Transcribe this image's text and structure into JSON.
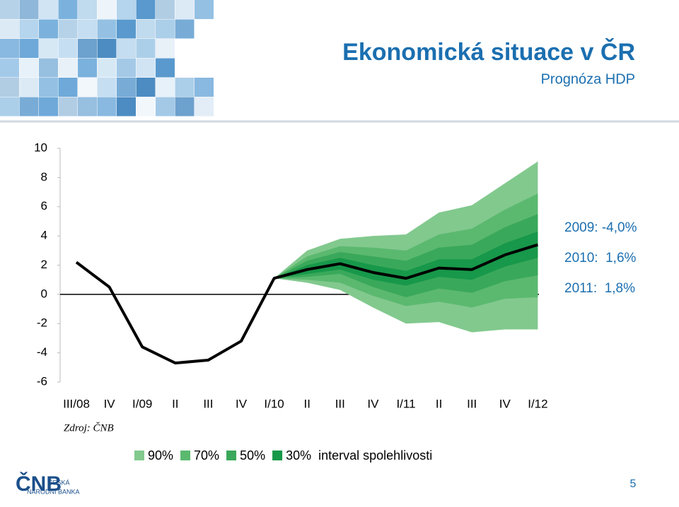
{
  "header": {
    "title": "Ekonomická situace v ČR",
    "subtitle": "Prognóza HDP"
  },
  "chart_data": {
    "type": "fan",
    "categories": [
      "III/08",
      "IV",
      "I/09",
      "II",
      "III",
      "IV",
      "I/10",
      "II",
      "III",
      "IV",
      "I/11",
      "II",
      "III",
      "IV",
      "I/12"
    ],
    "line": {
      "color": "#000000",
      "values": [
        2.2,
        0.5,
        -3.6,
        -4.7,
        -4.5,
        -3.2,
        1.1,
        1.7,
        2.1,
        1.5,
        1.1,
        1.8,
        1.7,
        2.7,
        3.4
      ]
    },
    "bands": [
      {
        "name": "90%",
        "color": "#82c98e",
        "upper": [
          null,
          null,
          null,
          null,
          null,
          null,
          1.1,
          3.0,
          3.8,
          4.0,
          4.1,
          5.6,
          6.1,
          7.6,
          9.1
        ],
        "lower": [
          null,
          null,
          null,
          null,
          null,
          null,
          1.1,
          0.8,
          0.3,
          -0.9,
          -2.0,
          -1.9,
          -2.6,
          -2.4,
          -2.4
        ]
      },
      {
        "name": "70%",
        "color": "#5bb96f",
        "upper": [
          null,
          null,
          null,
          null,
          null,
          null,
          1.1,
          2.6,
          3.3,
          3.2,
          3.0,
          4.1,
          4.5,
          5.8,
          6.9
        ],
        "lower": [
          null,
          null,
          null,
          null,
          null,
          null,
          1.1,
          1.0,
          0.8,
          -0.1,
          -0.8,
          -0.5,
          -0.9,
          -0.3,
          -0.2
        ]
      },
      {
        "name": "50%",
        "color": "#3aa85a",
        "upper": [
          null,
          null,
          null,
          null,
          null,
          null,
          1.1,
          2.3,
          2.9,
          2.6,
          2.3,
          3.2,
          3.4,
          4.6,
          5.5
        ],
        "lower": [
          null,
          null,
          null,
          null,
          null,
          null,
          1.1,
          1.2,
          1.4,
          0.5,
          -0.2,
          0.4,
          0.1,
          0.9,
          1.3
        ]
      },
      {
        "name": "30%",
        "color": "#17984a",
        "upper": [
          null,
          null,
          null,
          null,
          null,
          null,
          1.1,
          2.0,
          2.5,
          2.0,
          1.6,
          2.4,
          2.4,
          3.5,
          4.3
        ],
        "lower": [
          null,
          null,
          null,
          null,
          null,
          null,
          1.1,
          1.4,
          1.7,
          1.0,
          0.6,
          1.2,
          1.0,
          1.9,
          2.5
        ]
      }
    ],
    "legend_note": "interval spolehlivosti",
    "ylim": [
      -6,
      10
    ],
    "yticks": [
      -6,
      -4,
      -2,
      0,
      2,
      4,
      6,
      8,
      10
    ],
    "annotations": [
      "2009: -4,0%",
      "2010:  1,6%",
      "2011:  1,8%"
    ],
    "source": "Zdroj: ČNB"
  },
  "footer": {
    "logo": "ČNB",
    "logo_line1": "ČESKÁ",
    "logo_line2": "NÁRODNÍ BANKA",
    "page": 5
  }
}
